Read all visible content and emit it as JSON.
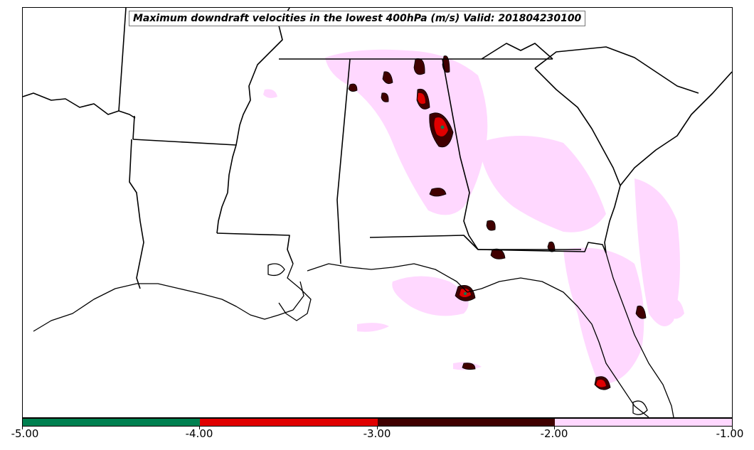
{
  "title": "Maximum downdraft velocities in the lowest 400hPa (m/s) Valid: 201804230100",
  "colorbar": {
    "ticks": [
      "-5.00",
      "-4.00",
      "-3.00",
      "-2.00",
      "-1.00"
    ],
    "bins": [
      {
        "from": -5.0,
        "to": -4.0,
        "color": "#008050"
      },
      {
        "from": -4.0,
        "to": -3.0,
        "color": "#e00000"
      },
      {
        "from": -3.0,
        "to": -2.0,
        "color": "#400000"
      },
      {
        "from": -2.0,
        "to": -1.0,
        "color": "#ffd8ff"
      }
    ]
  },
  "colors": {
    "light": "#ffd8ff",
    "dark": "#400000",
    "red": "#e00000",
    "green": "#008050",
    "boundary": "#000000"
  }
}
